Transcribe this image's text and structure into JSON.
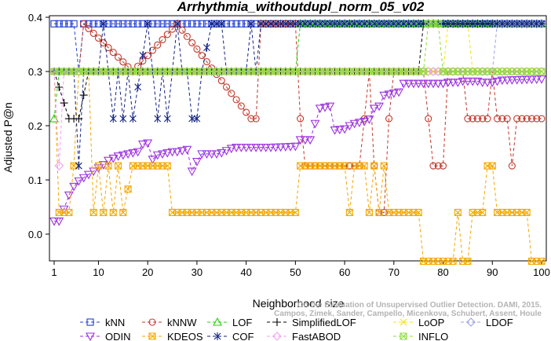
{
  "chart_data": {
    "type": "line",
    "title": "Arrhythmia_withoutdupl_norm_05_v02",
    "xlabel": "Neighborhood size",
    "ylabel": "Adjusted P@n",
    "xlim": [
      1,
      100
    ],
    "ylim": [
      -0.05,
      0.4
    ],
    "xticks": [
      1,
      10,
      20,
      30,
      40,
      50,
      60,
      70,
      80,
      90,
      100
    ],
    "yticks": [
      0.0,
      0.1,
      0.2,
      0.3,
      0.4
    ],
    "grid": false,
    "legend_position": "bottom",
    "credit": [
      "Campos, Zimek, Sander, Campello, Micenkova, Schubert, Assent, Houle",
      "On the Evaluation of Unsupervised Outlier Detection. DAMI, 2015."
    ],
    "series": [
      {
        "name": "kNN",
        "color": "#1f3fd1",
        "marker": "square",
        "segments": [
          [
            1,
            0.388
          ],
          [
            5,
            0.388
          ],
          [
            6,
            0.3
          ],
          [
            7,
            0.388
          ],
          [
            11,
            0.388
          ],
          [
            100,
            0.388
          ]
        ]
      },
      {
        "name": "kNNW",
        "color": "#c0392b",
        "marker": "circle",
        "segments": [
          [
            1,
            0.3
          ],
          [
            5,
            0.3
          ],
          [
            6,
            0.3
          ],
          [
            7,
            0.388
          ],
          [
            17,
            0.3
          ],
          [
            26,
            0.388
          ],
          [
            41,
            0.213
          ],
          [
            42,
            0.213
          ],
          [
            43,
            0.388
          ],
          [
            50,
            0.388
          ],
          [
            51,
            0.213
          ],
          [
            52,
            0.126
          ],
          [
            56,
            0.126
          ],
          [
            63,
            0.126
          ],
          [
            64,
            0.213
          ],
          [
            65,
            0.3
          ],
          [
            66,
            0.126
          ],
          [
            67,
            0.04
          ],
          [
            68,
            0.04
          ],
          [
            69,
            0.213
          ],
          [
            70,
            0.3
          ],
          [
            75,
            0.3
          ],
          [
            76,
            0.3
          ],
          [
            77,
            0.213
          ],
          [
            78,
            0.126
          ],
          [
            80,
            0.126
          ],
          [
            81,
            0.3
          ],
          [
            84,
            0.3
          ],
          [
            85,
            0.213
          ],
          [
            89,
            0.213
          ],
          [
            90,
            0.3
          ],
          [
            91,
            0.213
          ],
          [
            93,
            0.213
          ],
          [
            94,
            0.126
          ],
          [
            95,
            0.213
          ],
          [
            100,
            0.213
          ]
        ]
      },
      {
        "name": "LOF",
        "color": "#2ecc10",
        "marker": "triangle-up",
        "segments": [
          [
            1,
            0.213
          ],
          [
            2,
            0.3
          ],
          [
            50,
            0.3
          ],
          [
            51,
            0.388
          ],
          [
            100,
            0.388
          ]
        ]
      },
      {
        "name": "SimplifiedLOF",
        "color": "#000000",
        "marker": "plus",
        "segments": [
          [
            1,
            0.3
          ],
          [
            4,
            0.213
          ],
          [
            6,
            0.213
          ],
          [
            8,
            0.3
          ],
          [
            51,
            0.3
          ],
          [
            52,
            0.3
          ],
          [
            75,
            0.3
          ],
          [
            76,
            0.388
          ],
          [
            100,
            0.388
          ]
        ]
      },
      {
        "name": "LoOP",
        "color": "#f1e40f",
        "marker": "x",
        "segments": [
          [
            1,
            0.3
          ],
          [
            80,
            0.3
          ],
          [
            81,
            0.388
          ],
          [
            85,
            0.388
          ],
          [
            86,
            0.3
          ],
          [
            100,
            0.3
          ]
        ]
      },
      {
        "name": "LDOF",
        "color": "#9aa0e0",
        "marker": "diamond",
        "segments": [
          [
            1,
            0.3
          ],
          [
            90,
            0.3
          ],
          [
            91,
            0.388
          ],
          [
            100,
            0.388
          ]
        ]
      },
      {
        "name": "ODIN",
        "color": "#9b30e0",
        "marker": "triangle-down",
        "segments": [
          [
            1,
            0.024
          ],
          [
            2,
            0.024
          ],
          [
            3,
            0.046
          ],
          [
            4,
            0.072
          ],
          [
            5,
            0.088
          ],
          [
            6,
            0.098
          ],
          [
            7,
            0.104
          ],
          [
            8,
            0.11
          ],
          [
            9,
            0.116
          ],
          [
            10,
            0.122
          ],
          [
            11,
            0.128
          ],
          [
            12,
            0.136
          ],
          [
            13,
            0.14
          ],
          [
            14,
            0.144
          ],
          [
            15,
            0.146
          ],
          [
            16,
            0.148
          ],
          [
            17,
            0.15
          ],
          [
            18,
            0.152
          ],
          [
            19,
            0.166
          ],
          [
            20,
            0.168
          ],
          [
            21,
            0.138
          ],
          [
            22,
            0.146
          ],
          [
            23,
            0.148
          ],
          [
            24,
            0.15
          ],
          [
            25,
            0.152
          ],
          [
            26,
            0.152
          ],
          [
            27,
            0.154
          ],
          [
            28,
            0.156
          ],
          [
            29,
            0.116
          ],
          [
            30,
            0.134
          ],
          [
            31,
            0.148
          ],
          [
            32,
            0.148
          ],
          [
            33,
            0.148
          ],
          [
            34,
            0.148
          ],
          [
            35,
            0.15
          ],
          [
            36,
            0.154
          ],
          [
            37,
            0.158
          ],
          [
            38,
            0.16
          ],
          [
            45,
            0.16
          ],
          [
            50,
            0.162
          ],
          [
            51,
            0.174
          ],
          [
            53,
            0.174
          ],
          [
            54,
            0.204
          ],
          [
            55,
            0.232
          ],
          [
            57,
            0.236
          ],
          [
            58,
            0.192
          ],
          [
            60,
            0.194
          ],
          [
            61,
            0.2
          ],
          [
            62,
            0.204
          ],
          [
            63,
            0.206
          ],
          [
            64,
            0.208
          ],
          [
            65,
            0.212
          ],
          [
            66,
            0.232
          ],
          [
            67,
            0.236
          ],
          [
            68,
            0.256
          ],
          [
            70,
            0.26
          ],
          [
            71,
            0.262
          ],
          [
            72,
            0.278
          ],
          [
            80,
            0.278
          ],
          [
            81,
            0.28
          ],
          [
            83,
            0.28
          ],
          [
            84,
            0.282
          ],
          [
            85,
            0.282
          ],
          [
            87,
            0.282
          ],
          [
            88,
            0.28
          ],
          [
            89,
            0.28
          ],
          [
            90,
            0.28
          ],
          [
            91,
            0.282
          ],
          [
            92,
            0.284
          ],
          [
            100,
            0.286
          ]
        ]
      },
      {
        "name": "KDEOS",
        "color": "#f5a800",
        "marker": "square-x",
        "segments": [
          [
            1,
            0.3
          ],
          [
            2,
            0.04
          ],
          [
            3,
            0.04
          ],
          [
            4,
            0.04
          ],
          [
            5,
            0.126
          ],
          [
            6,
            0.3
          ],
          [
            7,
            0.3
          ],
          [
            8,
            0.3
          ],
          [
            9,
            0.04
          ],
          [
            10,
            0.126
          ],
          [
            11,
            0.04
          ],
          [
            12,
            0.126
          ],
          [
            13,
            0.04
          ],
          [
            14,
            0.126
          ],
          [
            15,
            0.04
          ],
          [
            17,
            0.126
          ],
          [
            24,
            0.126
          ],
          [
            25,
            0.04
          ],
          [
            50,
            0.04
          ],
          [
            51,
            0.126
          ],
          [
            60,
            0.126
          ],
          [
            61,
            0.04
          ],
          [
            62,
            0.126
          ],
          [
            64,
            0.126
          ],
          [
            65,
            0.04
          ],
          [
            66,
            0.126
          ],
          [
            67,
            0.04
          ],
          [
            68,
            0.126
          ],
          [
            69,
            0.04
          ],
          [
            75,
            0.04
          ],
          [
            76,
            -0.05
          ],
          [
            82,
            -0.05
          ],
          [
            83,
            0.04
          ],
          [
            84,
            -0.05
          ],
          [
            85,
            -0.05
          ],
          [
            86,
            0.04
          ],
          [
            88,
            0.04
          ],
          [
            89,
            0.126
          ],
          [
            90,
            0.126
          ],
          [
            91,
            0.04
          ],
          [
            97,
            0.04
          ],
          [
            98,
            -0.05
          ],
          [
            100,
            -0.05
          ]
        ]
      },
      {
        "name": "COF",
        "color": "#102080",
        "marker": "asterisk",
        "segments": [
          [
            1,
            0.3
          ],
          [
            4,
            0.3
          ],
          [
            5,
            0.3
          ],
          [
            6,
            0.126
          ],
          [
            7,
            0.3
          ],
          [
            8,
            0.3
          ],
          [
            9,
            0.3
          ],
          [
            10,
            0.3
          ],
          [
            11,
            0.388
          ],
          [
            12,
            0.3
          ],
          [
            13,
            0.213
          ],
          [
            14,
            0.3
          ],
          [
            15,
            0.213
          ],
          [
            16,
            0.3
          ],
          [
            17,
            0.213
          ],
          [
            20,
            0.388
          ],
          [
            21,
            0.3
          ],
          [
            22,
            0.213
          ],
          [
            23,
            0.3
          ],
          [
            24,
            0.213
          ],
          [
            25,
            0.3
          ],
          [
            26,
            0.388
          ],
          [
            27,
            0.3
          ],
          [
            28,
            0.3
          ],
          [
            29,
            0.213
          ],
          [
            30,
            0.213
          ],
          [
            31,
            0.3
          ],
          [
            33,
            0.388
          ],
          [
            35,
            0.388
          ],
          [
            36,
            0.3
          ],
          [
            38,
            0.3
          ],
          [
            39,
            0.3
          ],
          [
            40,
            0.3
          ],
          [
            41,
            0.388
          ],
          [
            42,
            0.3
          ],
          [
            43,
            0.388
          ],
          [
            100,
            0.388
          ]
        ]
      },
      {
        "name": "FastABOD",
        "color": "#f0a0f0",
        "marker": "diamond",
        "segments": [
          [
            1,
            0.3
          ],
          [
            2,
            0.126
          ],
          [
            3,
            0.3
          ],
          [
            100,
            0.3
          ]
        ]
      },
      {
        "name": "INFLO",
        "color": "#8fdc3a",
        "marker": "square-x",
        "segments": [
          [
            1,
            0.3
          ],
          [
            76,
            0.3
          ],
          [
            77,
            0.388
          ],
          [
            79,
            0.388
          ],
          [
            80,
            0.3
          ],
          [
            100,
            0.3
          ]
        ]
      }
    ]
  }
}
